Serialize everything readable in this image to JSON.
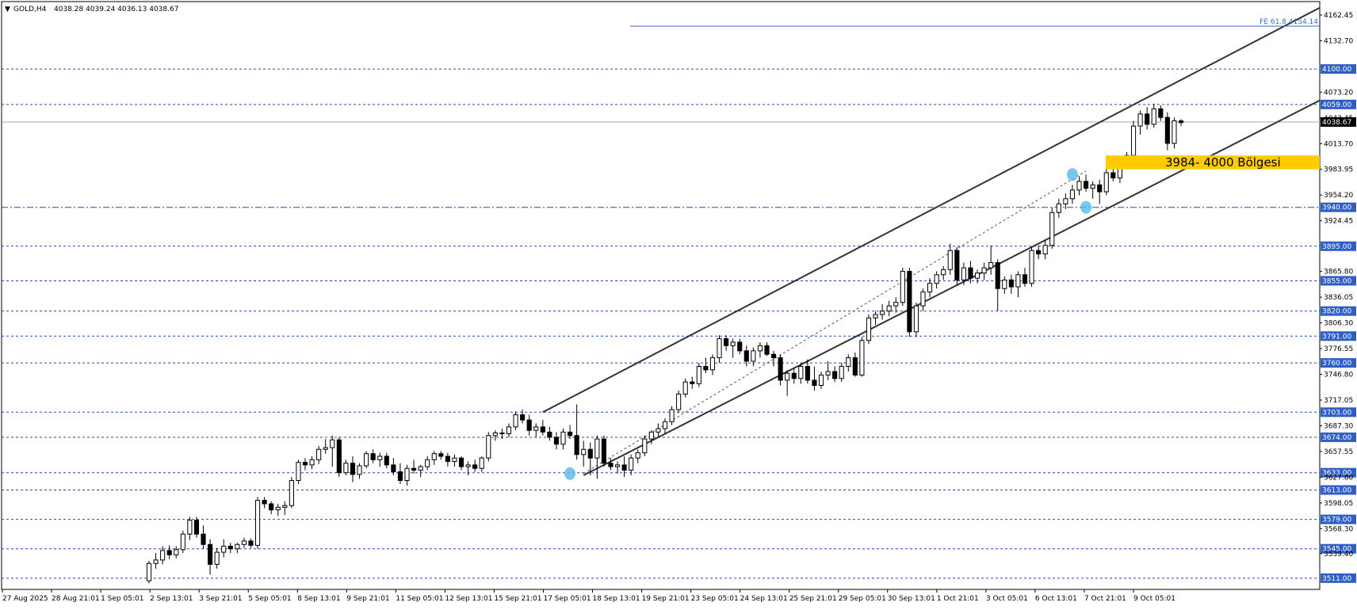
{
  "chart_data": {
    "type": "candlestick",
    "symbol": "GOLD,H4",
    "ohlc_header": "4038.28 4039.24 4036.13 4038.67",
    "current_price": "4038.67",
    "ylim": [
      3498,
      4178
    ],
    "y_ticks": [
      "4162.45",
      "4132.70",
      "4073.20",
      "4043.45",
      "4013.70",
      "3983.95",
      "3954.20",
      "3924.45",
      "3865.80",
      "3836.05",
      "3806.30",
      "3776.55",
      "3746.80",
      "3717.05",
      "3687.30",
      "3657.55",
      "3627.80",
      "3598.05",
      "3568.30",
      "3539.40"
    ],
    "x_labels": [
      "27 Aug 2025",
      "28 Aug 21:01",
      "1 Sep 05:01",
      "2 Sep 13:01",
      "3 Sep 21:01",
      "5 Sep 05:01",
      "8 Sep 13:01",
      "9 Sep 21:01",
      "11 Sep 05:01",
      "12 Sep 13:01",
      "15 Sep 21:01",
      "17 Sep 05:01",
      "18 Sep 13:01",
      "19 Sep 21:01",
      "23 Sep 05:01",
      "24 Sep 13:01",
      "25 Sep 21:01",
      "29 Sep 05:01",
      "30 Sep 13:01",
      "1 Oct 21:01",
      "3 Oct 05:01",
      "6 Oct 13:01",
      "7 Oct 21:01",
      "9 Oct 05:01"
    ],
    "levels": [
      {
        "value": 4100.0,
        "label": "4100.00",
        "style": "dashed"
      },
      {
        "value": 4059.0,
        "label": "4059.00",
        "style": "dashed"
      },
      {
        "value": 3940.0,
        "label": "3940.00",
        "style": "dashdot"
      },
      {
        "value": 3895.0,
        "label": "3895.00",
        "style": "dashed"
      },
      {
        "value": 3855.0,
        "label": "3855.00",
        "style": "dashed"
      },
      {
        "value": 3820.0,
        "label": "3820.00",
        "style": "dashed"
      },
      {
        "value": 3791.0,
        "label": "3791.00",
        "style": "dashed"
      },
      {
        "value": 3760.0,
        "label": "3760.00",
        "style": "dashed"
      },
      {
        "value": 3703.0,
        "label": "3703.00",
        "style": "dashed"
      },
      {
        "value": 3674.0,
        "label": "3674.00",
        "style": "dashed"
      },
      {
        "value": 3633.0,
        "label": "3633.00",
        "style": "dashed"
      },
      {
        "value": 3613.0,
        "label": "3613.00",
        "style": "dashed"
      },
      {
        "value": 3579.0,
        "label": "3579.00",
        "style": "dashed"
      },
      {
        "value": 3545.0,
        "label": "3545.00",
        "style": "dashed"
      },
      {
        "value": 3511.0,
        "label": "3511.00",
        "style": "dashed"
      }
    ],
    "fib_label": "FE 61.8 4154.14",
    "fib_value": 4154.14,
    "zone": {
      "label": "3984- 4000 Bölgesi",
      "low": 3984,
      "high": 4000
    },
    "channel_upper": [
      [
        58,
        3703
      ],
      [
        148,
        4071
      ]
    ],
    "channel_lower": [
      [
        64,
        3630
      ],
      [
        148,
        3966
      ]
    ],
    "candles": [
      {
        "o": 3508,
        "h": 3531,
        "l": 3505,
        "c": 3528
      },
      {
        "o": 3528,
        "h": 3540,
        "l": 3522,
        "c": 3532
      },
      {
        "o": 3532,
        "h": 3548,
        "l": 3527,
        "c": 3543
      },
      {
        "o": 3543,
        "h": 3549,
        "l": 3533,
        "c": 3538
      },
      {
        "o": 3538,
        "h": 3548,
        "l": 3534,
        "c": 3544
      },
      {
        "o": 3544,
        "h": 3566,
        "l": 3540,
        "c": 3562
      },
      {
        "o": 3562,
        "h": 3582,
        "l": 3555,
        "c": 3578
      },
      {
        "o": 3578,
        "h": 3582,
        "l": 3558,
        "c": 3562
      },
      {
        "o": 3562,
        "h": 3572,
        "l": 3545,
        "c": 3550
      },
      {
        "o": 3550,
        "h": 3556,
        "l": 3515,
        "c": 3527
      },
      {
        "o": 3527,
        "h": 3546,
        "l": 3522,
        "c": 3541
      },
      {
        "o": 3541,
        "h": 3556,
        "l": 3535,
        "c": 3548
      },
      {
        "o": 3548,
        "h": 3552,
        "l": 3540,
        "c": 3545
      },
      {
        "o": 3545,
        "h": 3552,
        "l": 3540,
        "c": 3550
      },
      {
        "o": 3550,
        "h": 3558,
        "l": 3546,
        "c": 3554
      },
      {
        "o": 3554,
        "h": 3557,
        "l": 3546,
        "c": 3549
      },
      {
        "o": 3549,
        "h": 3605,
        "l": 3545,
        "c": 3601
      },
      {
        "o": 3601,
        "h": 3605,
        "l": 3592,
        "c": 3597
      },
      {
        "o": 3597,
        "h": 3600,
        "l": 3585,
        "c": 3590
      },
      {
        "o": 3590,
        "h": 3597,
        "l": 3583,
        "c": 3593
      },
      {
        "o": 3593,
        "h": 3600,
        "l": 3584,
        "c": 3595
      },
      {
        "o": 3595,
        "h": 3628,
        "l": 3592,
        "c": 3624
      },
      {
        "o": 3624,
        "h": 3648,
        "l": 3620,
        "c": 3645
      },
      {
        "o": 3645,
        "h": 3650,
        "l": 3636,
        "c": 3642
      },
      {
        "o": 3642,
        "h": 3652,
        "l": 3637,
        "c": 3648
      },
      {
        "o": 3648,
        "h": 3664,
        "l": 3643,
        "c": 3660
      },
      {
        "o": 3660,
        "h": 3672,
        "l": 3655,
        "c": 3662
      },
      {
        "o": 3662,
        "h": 3676,
        "l": 3640,
        "c": 3671
      },
      {
        "o": 3671,
        "h": 3674,
        "l": 3628,
        "c": 3633
      },
      {
        "o": 3633,
        "h": 3648,
        "l": 3630,
        "c": 3644
      },
      {
        "o": 3644,
        "h": 3652,
        "l": 3622,
        "c": 3631
      },
      {
        "o": 3631,
        "h": 3644,
        "l": 3626,
        "c": 3641
      },
      {
        "o": 3641,
        "h": 3658,
        "l": 3638,
        "c": 3655
      },
      {
        "o": 3655,
        "h": 3660,
        "l": 3644,
        "c": 3648
      },
      {
        "o": 3648,
        "h": 3656,
        "l": 3640,
        "c": 3652
      },
      {
        "o": 3652,
        "h": 3656,
        "l": 3638,
        "c": 3642
      },
      {
        "o": 3642,
        "h": 3650,
        "l": 3630,
        "c": 3634
      },
      {
        "o": 3634,
        "h": 3644,
        "l": 3620,
        "c": 3624
      },
      {
        "o": 3624,
        "h": 3642,
        "l": 3618,
        "c": 3638
      },
      {
        "o": 3638,
        "h": 3648,
        "l": 3632,
        "c": 3636
      },
      {
        "o": 3636,
        "h": 3642,
        "l": 3628,
        "c": 3640
      },
      {
        "o": 3640,
        "h": 3652,
        "l": 3636,
        "c": 3648
      },
      {
        "o": 3648,
        "h": 3658,
        "l": 3642,
        "c": 3655
      },
      {
        "o": 3655,
        "h": 3658,
        "l": 3648,
        "c": 3652
      },
      {
        "o": 3652,
        "h": 3656,
        "l": 3640,
        "c": 3646
      },
      {
        "o": 3646,
        "h": 3654,
        "l": 3640,
        "c": 3650
      },
      {
        "o": 3650,
        "h": 3652,
        "l": 3636,
        "c": 3640
      },
      {
        "o": 3640,
        "h": 3646,
        "l": 3630,
        "c": 3642
      },
      {
        "o": 3642,
        "h": 3648,
        "l": 3634,
        "c": 3638
      },
      {
        "o": 3638,
        "h": 3652,
        "l": 3634,
        "c": 3650
      },
      {
        "o": 3650,
        "h": 3680,
        "l": 3646,
        "c": 3676
      },
      {
        "o": 3676,
        "h": 3682,
        "l": 3670,
        "c": 3679
      },
      {
        "o": 3679,
        "h": 3684,
        "l": 3672,
        "c": 3678
      },
      {
        "o": 3678,
        "h": 3690,
        "l": 3674,
        "c": 3686
      },
      {
        "o": 3686,
        "h": 3704,
        "l": 3682,
        "c": 3700
      },
      {
        "o": 3700,
        "h": 3706,
        "l": 3690,
        "c": 3694
      },
      {
        "o": 3694,
        "h": 3700,
        "l": 3676,
        "c": 3682
      },
      {
        "o": 3682,
        "h": 3690,
        "l": 3674,
        "c": 3686
      },
      {
        "o": 3686,
        "h": 3694,
        "l": 3676,
        "c": 3680
      },
      {
        "o": 3680,
        "h": 3686,
        "l": 3670,
        "c": 3674
      },
      {
        "o": 3674,
        "h": 3680,
        "l": 3660,
        "c": 3666
      },
      {
        "o": 3666,
        "h": 3684,
        "l": 3660,
        "c": 3680
      },
      {
        "o": 3680,
        "h": 3688,
        "l": 3672,
        "c": 3676
      },
      {
        "o": 3676,
        "h": 3712,
        "l": 3648,
        "c": 3654
      },
      {
        "o": 3654,
        "h": 3670,
        "l": 3640,
        "c": 3660
      },
      {
        "o": 3660,
        "h": 3668,
        "l": 3630,
        "c": 3650
      },
      {
        "o": 3650,
        "h": 3676,
        "l": 3626,
        "c": 3672
      },
      {
        "o": 3672,
        "h": 3676,
        "l": 3640,
        "c": 3644
      },
      {
        "o": 3644,
        "h": 3650,
        "l": 3636,
        "c": 3640
      },
      {
        "o": 3640,
        "h": 3646,
        "l": 3632,
        "c": 3642
      },
      {
        "o": 3642,
        "h": 3652,
        "l": 3628,
        "c": 3636
      },
      {
        "o": 3636,
        "h": 3654,
        "l": 3630,
        "c": 3650
      },
      {
        "o": 3650,
        "h": 3660,
        "l": 3644,
        "c": 3656
      },
      {
        "o": 3656,
        "h": 3676,
        "l": 3652,
        "c": 3672
      },
      {
        "o": 3672,
        "h": 3682,
        "l": 3666,
        "c": 3680
      },
      {
        "o": 3680,
        "h": 3690,
        "l": 3674,
        "c": 3684
      },
      {
        "o": 3684,
        "h": 3696,
        "l": 3678,
        "c": 3692
      },
      {
        "o": 3692,
        "h": 3710,
        "l": 3688,
        "c": 3706
      },
      {
        "o": 3706,
        "h": 3728,
        "l": 3702,
        "c": 3724
      },
      {
        "o": 3724,
        "h": 3742,
        "l": 3720,
        "c": 3738
      },
      {
        "o": 3738,
        "h": 3744,
        "l": 3730,
        "c": 3736
      },
      {
        "o": 3736,
        "h": 3760,
        "l": 3732,
        "c": 3756
      },
      {
        "o": 3756,
        "h": 3766,
        "l": 3748,
        "c": 3752
      },
      {
        "o": 3752,
        "h": 3770,
        "l": 3746,
        "c": 3766
      },
      {
        "o": 3766,
        "h": 3792,
        "l": 3760,
        "c": 3788
      },
      {
        "o": 3788,
        "h": 3792,
        "l": 3774,
        "c": 3780
      },
      {
        "o": 3780,
        "h": 3788,
        "l": 3766,
        "c": 3784
      },
      {
        "o": 3784,
        "h": 3788,
        "l": 3770,
        "c": 3774
      },
      {
        "o": 3774,
        "h": 3780,
        "l": 3756,
        "c": 3762
      },
      {
        "o": 3762,
        "h": 3778,
        "l": 3756,
        "c": 3774
      },
      {
        "o": 3774,
        "h": 3784,
        "l": 3766,
        "c": 3780
      },
      {
        "o": 3780,
        "h": 3784,
        "l": 3768,
        "c": 3770
      },
      {
        "o": 3770,
        "h": 3774,
        "l": 3756,
        "c": 3766
      },
      {
        "o": 3766,
        "h": 3770,
        "l": 3734,
        "c": 3740
      },
      {
        "o": 3740,
        "h": 3752,
        "l": 3722,
        "c": 3748
      },
      {
        "o": 3748,
        "h": 3754,
        "l": 3736,
        "c": 3742
      },
      {
        "o": 3742,
        "h": 3760,
        "l": 3736,
        "c": 3756
      },
      {
        "o": 3756,
        "h": 3764,
        "l": 3736,
        "c": 3740
      },
      {
        "o": 3740,
        "h": 3756,
        "l": 3728,
        "c": 3734
      },
      {
        "o": 3734,
        "h": 3750,
        "l": 3730,
        "c": 3746
      },
      {
        "o": 3746,
        "h": 3762,
        "l": 3740,
        "c": 3750
      },
      {
        "o": 3750,
        "h": 3756,
        "l": 3738,
        "c": 3742
      },
      {
        "o": 3742,
        "h": 3760,
        "l": 3738,
        "c": 3756
      },
      {
        "o": 3756,
        "h": 3770,
        "l": 3750,
        "c": 3766
      },
      {
        "o": 3766,
        "h": 3772,
        "l": 3744,
        "c": 3746
      },
      {
        "o": 3746,
        "h": 3790,
        "l": 3744,
        "c": 3786
      },
      {
        "o": 3786,
        "h": 3816,
        "l": 3782,
        "c": 3812
      },
      {
        "o": 3812,
        "h": 3820,
        "l": 3804,
        "c": 3816
      },
      {
        "o": 3816,
        "h": 3828,
        "l": 3810,
        "c": 3820
      },
      {
        "o": 3820,
        "h": 3832,
        "l": 3814,
        "c": 3826
      },
      {
        "o": 3826,
        "h": 3836,
        "l": 3818,
        "c": 3830
      },
      {
        "o": 3830,
        "h": 3870,
        "l": 3826,
        "c": 3866
      },
      {
        "o": 3866,
        "h": 3870,
        "l": 3790,
        "c": 3796
      },
      {
        "o": 3796,
        "h": 3830,
        "l": 3790,
        "c": 3826
      },
      {
        "o": 3826,
        "h": 3846,
        "l": 3820,
        "c": 3842
      },
      {
        "o": 3842,
        "h": 3858,
        "l": 3836,
        "c": 3852
      },
      {
        "o": 3852,
        "h": 3866,
        "l": 3846,
        "c": 3862
      },
      {
        "o": 3862,
        "h": 3872,
        "l": 3856,
        "c": 3868
      },
      {
        "o": 3868,
        "h": 3898,
        "l": 3862,
        "c": 3890
      },
      {
        "o": 3890,
        "h": 3894,
        "l": 3850,
        "c": 3856
      },
      {
        "o": 3856,
        "h": 3876,
        "l": 3850,
        "c": 3870
      },
      {
        "o": 3870,
        "h": 3878,
        "l": 3852,
        "c": 3858
      },
      {
        "o": 3858,
        "h": 3868,
        "l": 3852,
        "c": 3864
      },
      {
        "o": 3864,
        "h": 3876,
        "l": 3856,
        "c": 3870
      },
      {
        "o": 3870,
        "h": 3896,
        "l": 3862,
        "c": 3876
      },
      {
        "o": 3876,
        "h": 3880,
        "l": 3820,
        "c": 3846
      },
      {
        "o": 3846,
        "h": 3860,
        "l": 3840,
        "c": 3856
      },
      {
        "o": 3856,
        "h": 3862,
        "l": 3840,
        "c": 3848
      },
      {
        "o": 3848,
        "h": 3866,
        "l": 3836,
        "c": 3862
      },
      {
        "o": 3862,
        "h": 3870,
        "l": 3848,
        "c": 3852
      },
      {
        "o": 3852,
        "h": 3894,
        "l": 3848,
        "c": 3890
      },
      {
        "o": 3890,
        "h": 3896,
        "l": 3880,
        "c": 3886
      },
      {
        "o": 3886,
        "h": 3902,
        "l": 3880,
        "c": 3896
      },
      {
        "o": 3896,
        "h": 3940,
        "l": 3892,
        "c": 3934
      },
      {
        "o": 3934,
        "h": 3950,
        "l": 3928,
        "c": 3944
      },
      {
        "o": 3944,
        "h": 3956,
        "l": 3938,
        "c": 3950
      },
      {
        "o": 3950,
        "h": 3966,
        "l": 3944,
        "c": 3960
      },
      {
        "o": 3960,
        "h": 3976,
        "l": 3954,
        "c": 3970
      },
      {
        "o": 3970,
        "h": 3978,
        "l": 3958,
        "c": 3962
      },
      {
        "o": 3962,
        "h": 3970,
        "l": 3950,
        "c": 3966
      },
      {
        "o": 3966,
        "h": 3972,
        "l": 3944,
        "c": 3958
      },
      {
        "o": 3958,
        "h": 3986,
        "l": 3954,
        "c": 3980
      },
      {
        "o": 3980,
        "h": 3990,
        "l": 3970,
        "c": 3974
      },
      {
        "o": 3974,
        "h": 3994,
        "l": 3968,
        "c": 3988
      },
      {
        "o": 3988,
        "h": 4004,
        "l": 3984,
        "c": 4000
      },
      {
        "o": 4000,
        "h": 4040,
        "l": 3996,
        "c": 4034
      },
      {
        "o": 4034,
        "h": 4052,
        "l": 4024,
        "c": 4048
      },
      {
        "o": 4048,
        "h": 4056,
        "l": 4030,
        "c": 4036
      },
      {
        "o": 4036,
        "h": 4060,
        "l": 4032,
        "c": 4054
      },
      {
        "o": 4054,
        "h": 4058,
        "l": 4040,
        "c": 4044
      },
      {
        "o": 4044,
        "h": 4050,
        "l": 4006,
        "c": 4014
      },
      {
        "o": 4014,
        "h": 4044,
        "l": 4008,
        "c": 4040
      },
      {
        "o": 4040,
        "h": 4042,
        "l": 4034,
        "c": 4038
      }
    ]
  }
}
